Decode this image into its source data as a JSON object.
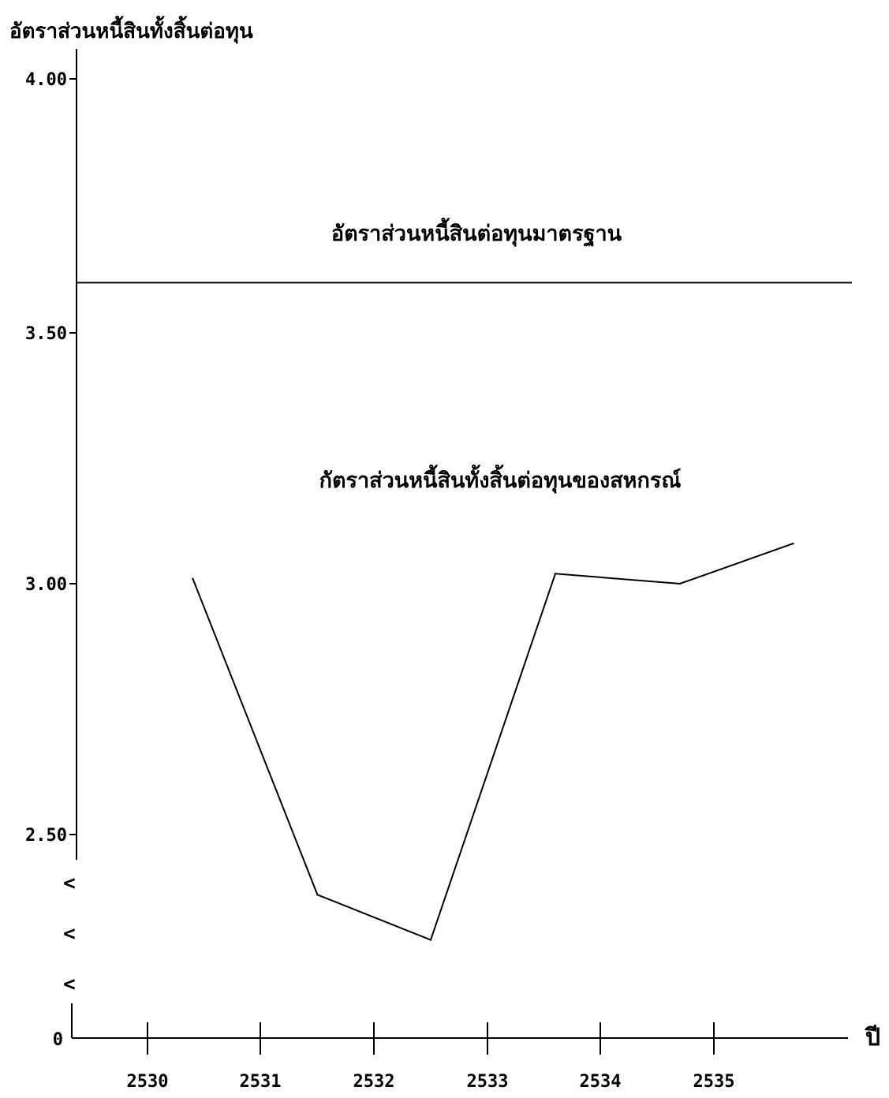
{
  "chart_data": {
    "type": "line",
    "ylabel": "อัตราส่วนหนี้สินทั้งสิ้นต่อทุน",
    "xlabel": "ปี",
    "x_ticks": [
      "2530",
      "2531",
      "2532",
      "2533",
      "2534",
      "2535"
    ],
    "y_ticks": [
      "4.00",
      "3.50",
      "3.00",
      "2.50",
      "0"
    ],
    "axis_break_marks": [
      "<",
      "<",
      "<"
    ],
    "ylim": [
      2.3,
      4.05
    ],
    "y_axis_break": true,
    "grid": false,
    "reference_line": {
      "label": "อัตราส่วนหนี้สินต่อทุนมาตรฐาน",
      "value": 3.6
    },
    "series": [
      {
        "name": "กัตราส่วนหนี้สินทั้งสิ้นต่อทุนของสหกรณ์",
        "x": [
          2530.4,
          2531.5,
          2532.5,
          2533.6,
          2534.7,
          2535.7
        ],
        "values": [
          3.01,
          2.38,
          2.29,
          3.02,
          3.0,
          3.08
        ]
      }
    ]
  }
}
